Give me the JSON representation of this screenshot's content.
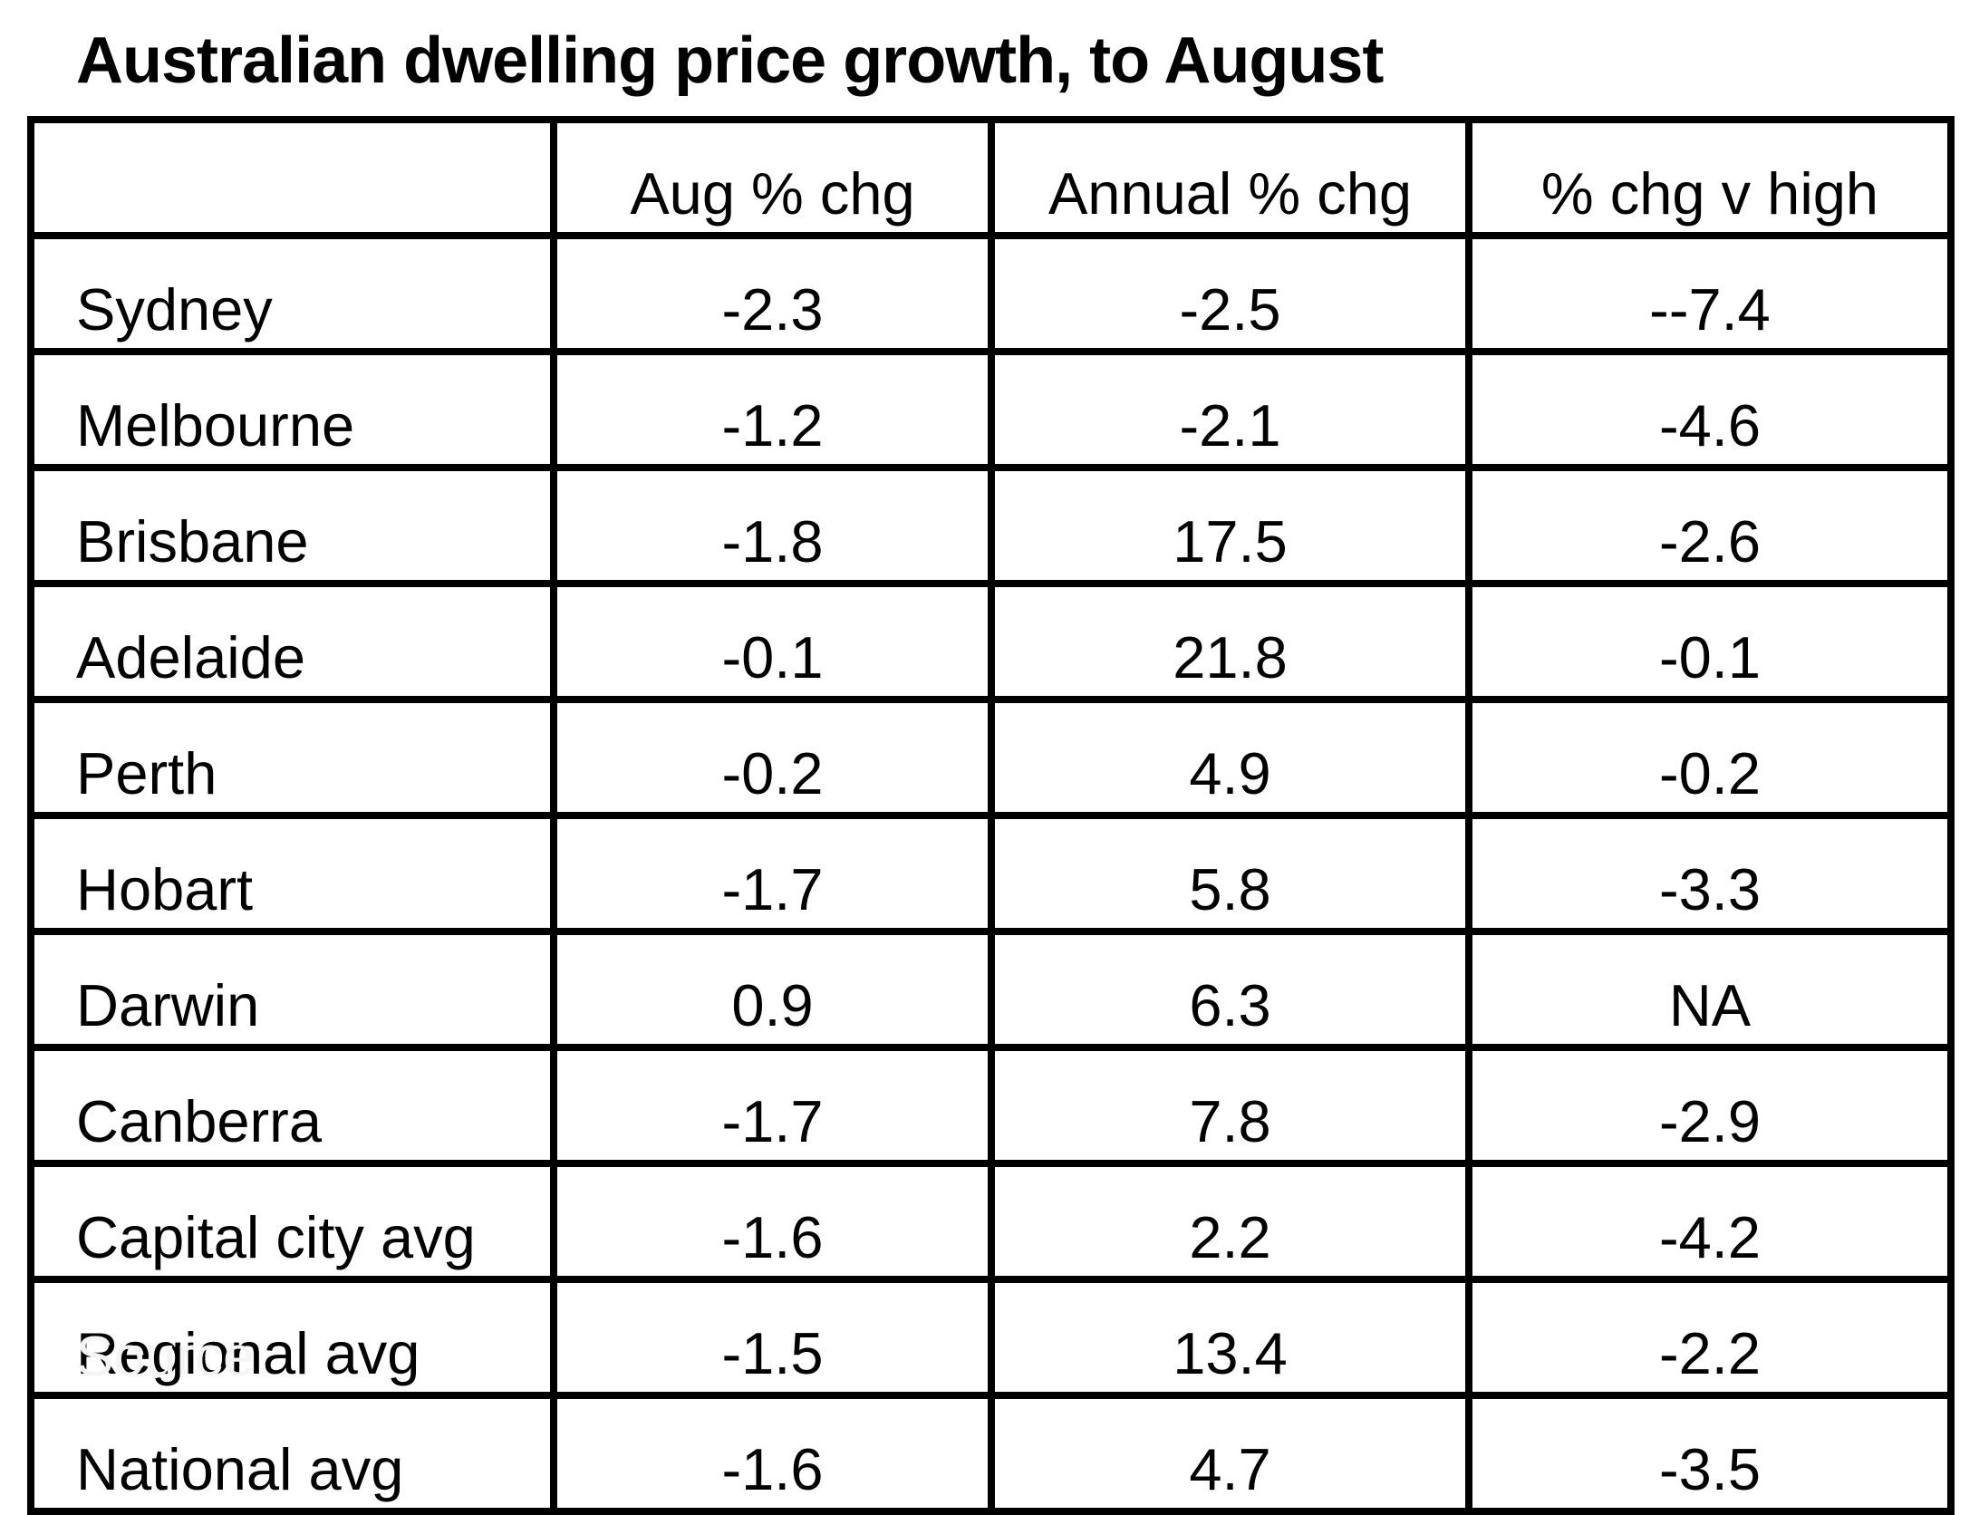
{
  "title": "Australian dwelling price growth, to August",
  "footer": {
    "source_partial": "Source"
  },
  "colors": {
    "text": "#000000",
    "background": "#ffffff",
    "border": "#000000",
    "watermark": "#f4f4f4"
  },
  "chart_data": {
    "type": "table",
    "title": "Australian dwelling price growth, to August",
    "columns": [
      "",
      "Aug % chg",
      "Annual % chg",
      "% chg v high"
    ],
    "rows": [
      {
        "city": "Sydney",
        "aug": "-2.3",
        "annual": "-2.5",
        "vs_high": "--7.4"
      },
      {
        "city": "Melbourne",
        "aug": "-1.2",
        "annual": "-2.1",
        "vs_high": "-4.6"
      },
      {
        "city": "Brisbane",
        "aug": "-1.8",
        "annual": "17.5",
        "vs_high": "-2.6"
      },
      {
        "city": "Adelaide",
        "aug": "-0.1",
        "annual": "21.8",
        "vs_high": "-0.1"
      },
      {
        "city": "Perth",
        "aug": "-0.2",
        "annual": "4.9",
        "vs_high": "-0.2"
      },
      {
        "city": "Hobart",
        "aug": "-1.7",
        "annual": "5.8",
        "vs_high": "-3.3"
      },
      {
        "city": "Darwin",
        "aug": "0.9",
        "annual": "6.3",
        "vs_high": "NA"
      },
      {
        "city": "Canberra",
        "aug": "-1.7",
        "annual": "7.8",
        "vs_high": "-2.9"
      },
      {
        "city": "Capital city avg",
        "aug": "-1.6",
        "annual": "2.2",
        "vs_high": "-4.2"
      },
      {
        "city": "Regional avg",
        "aug": "-1.5",
        "annual": "13.4",
        "vs_high": "-2.2"
      },
      {
        "city": "National avg",
        "aug": "-1.6",
        "annual": "4.7",
        "vs_high": "-3.5"
      }
    ]
  }
}
